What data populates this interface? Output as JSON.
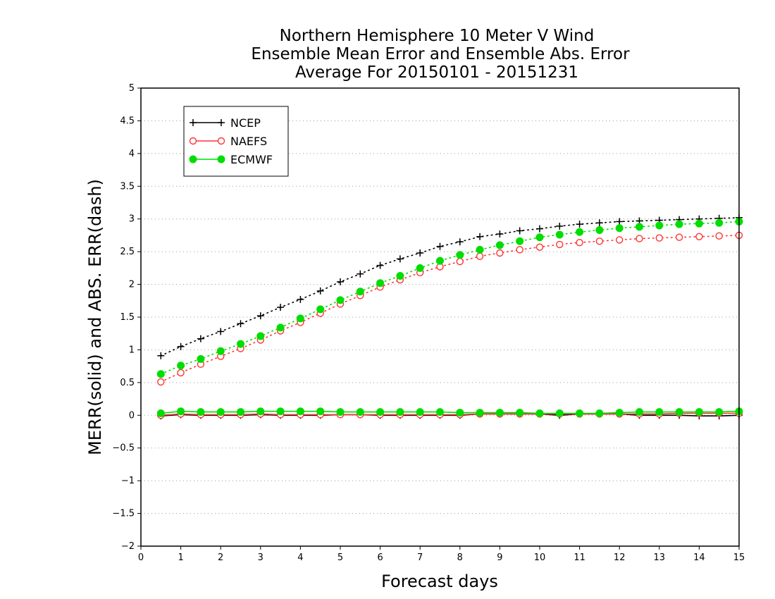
{
  "chart_data": {
    "type": "line",
    "title": [
      "Northern Hemisphere 10 Meter V Wind",
      "Ensemble Mean Error and Ensemble Abs. Error",
      "Average For 20150101 - 20151231"
    ],
    "xlabel": "Forecast days",
    "ylabel": "MERR(solid) and ABS. ERR(dash)",
    "xlim": [
      0,
      15
    ],
    "ylim": [
      -2,
      5
    ],
    "xticks": [
      "0",
      "1",
      "2",
      "3",
      "4",
      "5",
      "6",
      "7",
      "8",
      "9",
      "10",
      "11",
      "12",
      "13",
      "14",
      "15"
    ],
    "yticks": [
      "−2",
      "−1.5",
      "−1",
      "−0.5",
      "0",
      "0.5",
      "1",
      "1.5",
      "2",
      "2.5",
      "3",
      "3.5",
      "4",
      "4.5",
      "5"
    ],
    "grid": "horizontal dotted",
    "legend_position": "top-left",
    "x": [
      0.5,
      1,
      1.5,
      2,
      2.5,
      3,
      3.5,
      4,
      4.5,
      5,
      5.5,
      6,
      6.5,
      7,
      7.5,
      8,
      8.5,
      9,
      9.5,
      10,
      10.5,
      11,
      11.5,
      12,
      12.5,
      13,
      13.5,
      14,
      14.5,
      15
    ],
    "series": [
      {
        "name": "NCEP",
        "color": "#000000",
        "marker": "plus",
        "abs_error": [
          0.91,
          1.05,
          1.17,
          1.28,
          1.4,
          1.52,
          1.65,
          1.77,
          1.9,
          2.04,
          2.16,
          2.29,
          2.39,
          2.48,
          2.58,
          2.65,
          2.73,
          2.77,
          2.82,
          2.85,
          2.89,
          2.92,
          2.94,
          2.96,
          2.97,
          2.98,
          2.99,
          3.0,
          3.01,
          3.02
        ],
        "mean_error": [
          -0.01,
          0.01,
          0.0,
          0.0,
          0.0,
          0.01,
          0.0,
          0.0,
          0.0,
          0.01,
          0.01,
          0.0,
          0.0,
          0.0,
          0.0,
          0.0,
          0.02,
          0.02,
          0.02,
          0.02,
          0.0,
          0.02,
          0.02,
          0.02,
          0.0,
          0.0,
          0.0,
          -0.01,
          -0.01,
          0.0
        ]
      },
      {
        "name": "NAEFS",
        "color": "#ff3333",
        "marker": "open-circle",
        "abs_error": [
          0.51,
          0.65,
          0.78,
          0.9,
          1.02,
          1.15,
          1.29,
          1.42,
          1.56,
          1.7,
          1.83,
          1.96,
          2.07,
          2.18,
          2.27,
          2.35,
          2.43,
          2.48,
          2.53,
          2.57,
          2.61,
          2.64,
          2.66,
          2.68,
          2.7,
          2.71,
          2.72,
          2.73,
          2.74,
          2.75
        ],
        "mean_error": [
          0.0,
          0.02,
          0.01,
          0.01,
          0.01,
          0.02,
          0.01,
          0.01,
          0.01,
          0.01,
          0.01,
          0.01,
          0.01,
          0.01,
          0.01,
          0.01,
          0.02,
          0.02,
          0.02,
          0.02,
          0.02,
          0.02,
          0.02,
          0.02,
          0.02,
          0.02,
          0.03,
          0.03,
          0.03,
          0.03
        ]
      },
      {
        "name": "ECMWF",
        "color": "#00dd00",
        "marker": "filled-circle",
        "abs_error": [
          0.63,
          0.76,
          0.86,
          0.98,
          1.09,
          1.21,
          1.34,
          1.48,
          1.62,
          1.76,
          1.89,
          2.02,
          2.13,
          2.25,
          2.36,
          2.45,
          2.53,
          2.6,
          2.66,
          2.72,
          2.76,
          2.8,
          2.83,
          2.86,
          2.88,
          2.9,
          2.92,
          2.93,
          2.94,
          2.96
        ],
        "mean_error": [
          0.03,
          0.06,
          0.05,
          0.05,
          0.05,
          0.06,
          0.06,
          0.06,
          0.06,
          0.05,
          0.05,
          0.05,
          0.05,
          0.05,
          0.05,
          0.04,
          0.04,
          0.04,
          0.04,
          0.03,
          0.03,
          0.03,
          0.03,
          0.04,
          0.05,
          0.05,
          0.05,
          0.05,
          0.05,
          0.06
        ]
      }
    ]
  }
}
